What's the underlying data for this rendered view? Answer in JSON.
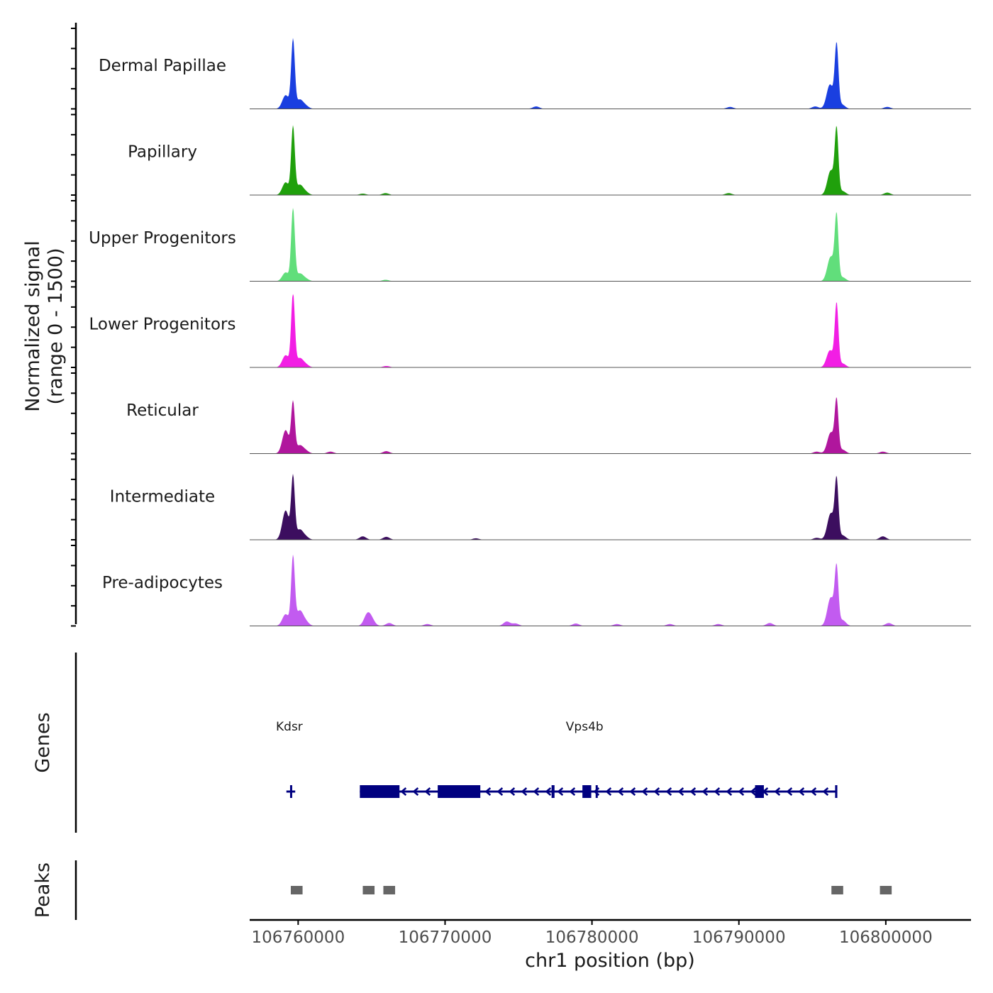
{
  "chart_data": {
    "type": "area",
    "subtype": "coverage-track",
    "y_axis_title_line1": "Normalized signal",
    "y_axis_title_line2": "(range 0 - 1500)",
    "ylim": [
      0,
      1500
    ],
    "x_axis_title": "chr1 position (bp)",
    "xlim": [
      106756700,
      106805800
    ],
    "x_ticks": [
      106760000,
      106770000,
      106780000,
      106790000,
      106800000
    ],
    "x_tick_labels": [
      "106760000",
      "106770000",
      "106780000",
      "106790000",
      "106800000"
    ],
    "peak_shape_width_bp": 320,
    "tracks": [
      {
        "name": "Dermal Papillae",
        "color": "#1a3fe0",
        "peaks": [
          [
            106759150,
            280
          ],
          [
            106759650,
            1400
          ],
          [
            106760100,
            180
          ],
          [
            106760500,
            60
          ],
          [
            106776200,
            50
          ],
          [
            106789400,
            40
          ],
          [
            106795200,
            50
          ],
          [
            106796200,
            500
          ],
          [
            106796650,
            1280
          ],
          [
            106797000,
            90
          ],
          [
            106800100,
            40
          ]
        ]
      },
      {
        "name": "Papillary",
        "color": "#20a00c",
        "peaks": [
          [
            106759150,
            260
          ],
          [
            106759650,
            1380
          ],
          [
            106760100,
            200
          ],
          [
            106760500,
            60
          ],
          [
            106764400,
            30
          ],
          [
            106765950,
            40
          ],
          [
            106789300,
            40
          ],
          [
            106796250,
            500
          ],
          [
            106796650,
            1300
          ],
          [
            106797050,
            80
          ],
          [
            106800100,
            50
          ]
        ]
      },
      {
        "name": "Upper Progenitors",
        "color": "#61de7b",
        "peaks": [
          [
            106759150,
            180
          ],
          [
            106759650,
            1480
          ],
          [
            106760100,
            150
          ],
          [
            106760500,
            50
          ],
          [
            106765950,
            30
          ],
          [
            106796250,
            500
          ],
          [
            106796650,
            1300
          ],
          [
            106797050,
            80
          ]
        ]
      },
      {
        "name": "Lower Progenitors",
        "color": "#f21ee4",
        "peaks": [
          [
            106759150,
            250
          ],
          [
            106759650,
            1500
          ],
          [
            106760100,
            180
          ],
          [
            106760500,
            60
          ],
          [
            106766000,
            30
          ],
          [
            106796200,
            350
          ],
          [
            106796650,
            1280
          ],
          [
            106797050,
            80
          ]
        ]
      },
      {
        "name": "Reticular",
        "color": "#b0169d",
        "peaks": [
          [
            106759150,
            480
          ],
          [
            106759650,
            1030
          ],
          [
            106760100,
            160
          ],
          [
            106760500,
            60
          ],
          [
            106762200,
            40
          ],
          [
            106766000,
            50
          ],
          [
            106795300,
            40
          ],
          [
            106796250,
            430
          ],
          [
            106796650,
            1050
          ],
          [
            106797050,
            80
          ],
          [
            106799800,
            40
          ]
        ]
      },
      {
        "name": "Intermediate",
        "color": "#3c0e5f",
        "peaks": [
          [
            106759150,
            600
          ],
          [
            106759650,
            1270
          ],
          [
            106760100,
            200
          ],
          [
            106760500,
            60
          ],
          [
            106764400,
            70
          ],
          [
            106766000,
            60
          ],
          [
            106772100,
            30
          ],
          [
            106795300,
            40
          ],
          [
            106796250,
            540
          ],
          [
            106796650,
            1180
          ],
          [
            106797050,
            90
          ],
          [
            106799800,
            70
          ]
        ]
      },
      {
        "name": "Pre-adipocytes",
        "color": "#c25bf0",
        "peaks": [
          [
            106759150,
            240
          ],
          [
            106759650,
            1400
          ],
          [
            106760100,
            300
          ],
          [
            106760500,
            90
          ],
          [
            106764700,
            220
          ],
          [
            106765000,
            120
          ],
          [
            106766200,
            60
          ],
          [
            106768800,
            40
          ],
          [
            106774200,
            90
          ],
          [
            106774800,
            50
          ],
          [
            106778900,
            50
          ],
          [
            106781700,
            40
          ],
          [
            106785300,
            40
          ],
          [
            106788600,
            40
          ],
          [
            106792100,
            60
          ],
          [
            106796250,
            580
          ],
          [
            106796650,
            1140
          ],
          [
            106797050,
            120
          ],
          [
            106800200,
            60
          ]
        ]
      }
    ],
    "genes_panel_title": "Genes",
    "genes": [
      {
        "name": "Kdsr",
        "strand": "-",
        "label_x": 106759400,
        "start": 106759200,
        "end": 106759800,
        "exons": [
          [
            106759450,
            106759550
          ]
        ]
      },
      {
        "name": "Vps4b",
        "strand": "-",
        "label_x": 106779500,
        "start": 106764200,
        "end": 106796700,
        "exons": [
          [
            106764200,
            106766900
          ],
          [
            106769500,
            106772400
          ],
          [
            106777250,
            106777450
          ],
          [
            106779350,
            106779950
          ],
          [
            106780250,
            106780350
          ],
          [
            106791100,
            106791700
          ],
          [
            106796550,
            106796700
          ]
        ]
      }
    ],
    "gene_color": "#000080",
    "peaks_panel_title": "Peaks",
    "peak_regions": [
      [
        106759500,
        106760300
      ],
      [
        106764400,
        106765200
      ],
      [
        106765800,
        106766600
      ],
      [
        106796300,
        106797100
      ],
      [
        106799600,
        106800400
      ]
    ],
    "peak_region_color": "#666666"
  }
}
